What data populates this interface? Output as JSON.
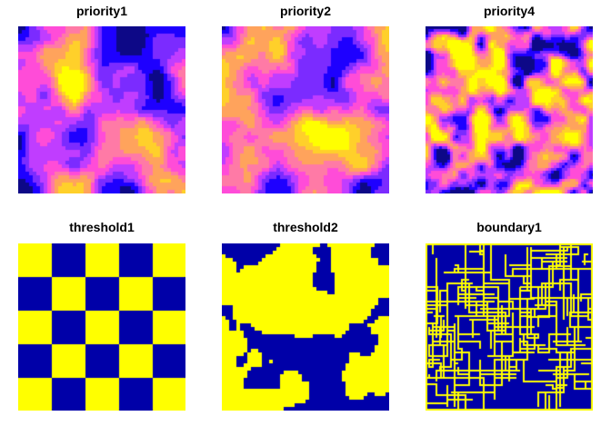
{
  "panels": [
    {
      "title": "priority1",
      "type": "field",
      "palette": "plasma",
      "seed": 11,
      "scale": "coarse"
    },
    {
      "title": "priority2",
      "type": "field",
      "palette": "plasma",
      "seed": 29,
      "scale": "coarse"
    },
    {
      "title": "priority4",
      "type": "field",
      "palette": "plasma",
      "seed": 47,
      "scale": "fine"
    },
    {
      "title": "threshold1",
      "type": "checker",
      "palette": "binary",
      "divisions": 5
    },
    {
      "title": "threshold2",
      "type": "blobs",
      "palette": "binary",
      "seed": 83
    },
    {
      "title": "boundary1",
      "type": "boundary",
      "palette": "binary",
      "seed": 101
    }
  ],
  "colors": {
    "plasma": [
      "#0d0887",
      "#1e00ff",
      "#7b2bff",
      "#c03dff",
      "#ff4cd8",
      "#ff7aa6",
      "#ffa35c",
      "#ffd02a",
      "#ffff00"
    ],
    "binary": [
      "#0000a8",
      "#ffff00"
    ]
  }
}
